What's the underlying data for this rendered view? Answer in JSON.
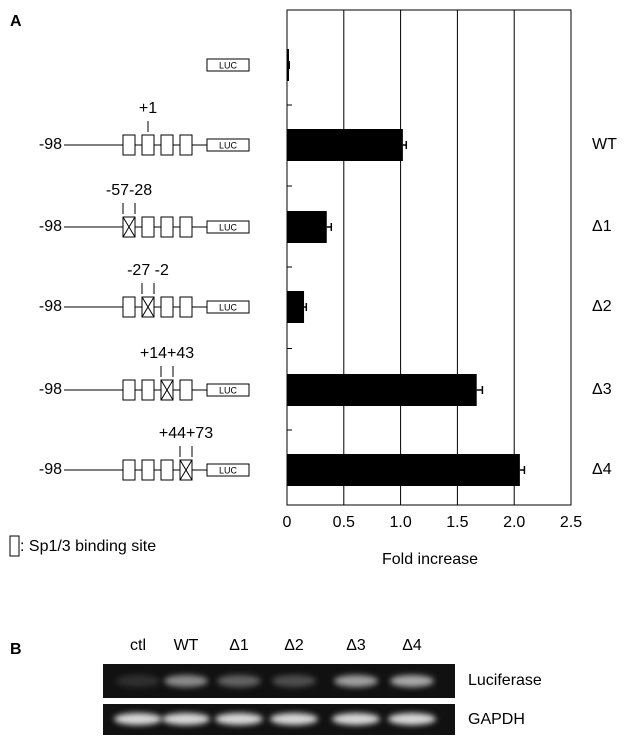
{
  "panel_labels": [
    "A",
    "B"
  ],
  "chart_data": {
    "type": "bar",
    "orientation": "horizontal",
    "categories": [
      null,
      "WT",
      "Δ1",
      "Δ2",
      "Δ3",
      "Δ4"
    ],
    "values": [
      0.01,
      1.02,
      0.35,
      0.15,
      1.67,
      2.05
    ],
    "errors": [
      0.01,
      0.03,
      0.04,
      0.02,
      0.05,
      0.04
    ],
    "color": "#000000",
    "xlim": [
      0,
      2.5
    ],
    "xticks": [
      0,
      0.5,
      {
        "value": 1,
        "label": "1.0"
      },
      1.5,
      {
        "value": 2,
        "label": "2.0"
      },
      2.5
    ],
    "xlabel": "Fold increase",
    "grid": true
  },
  "constructs": [
    {
      "promoter": null,
      "site_label": null,
      "reporter": "LUC"
    },
    {
      "promoter": "-98",
      "site_label": "+1",
      "reporter": "LUC"
    },
    {
      "promoter": "-98",
      "site_label": "-57-28",
      "reporter": "LUC"
    },
    {
      "promoter": "-98",
      "site_label": "-27 -2",
      "reporter": "LUC"
    },
    {
      "promoter": "-98",
      "site_label": "+14+43",
      "reporter": "LUC"
    },
    {
      "promoter": "-98",
      "site_label": "+44+73",
      "reporter": "LUC"
    }
  ],
  "legend_text": ": Sp1/3 binding site",
  "gel": {
    "lanes": [
      "ctl",
      "WT",
      "Δ1",
      "Δ2",
      "Δ3",
      "Δ4"
    ],
    "rows": [
      "Luciferase",
      "GAPDH"
    ]
  }
}
